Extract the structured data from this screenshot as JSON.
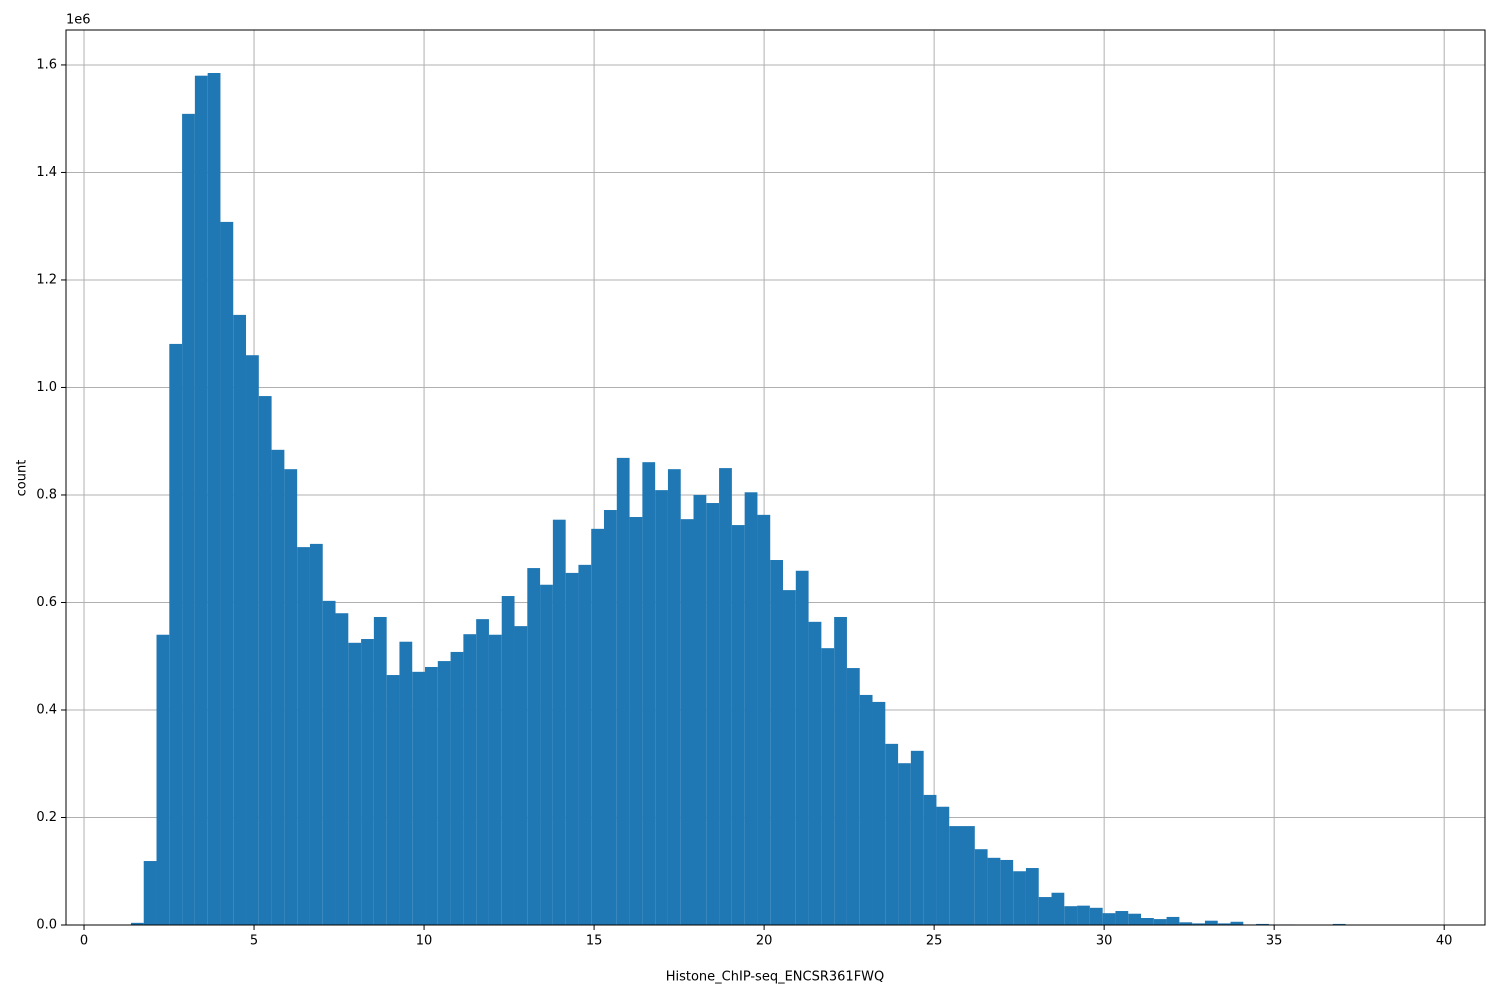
{
  "chart_data": {
    "type": "histogram",
    "color": "#1f77b4",
    "grid": true,
    "x_label": "Histone_ChIP-seq_ENCSR361FWQ",
    "y_label": "count",
    "y_offset_label": "1e6",
    "xlim": [
      -0.53,
      41.2
    ],
    "ylim": [
      0,
      1.665
    ],
    "xticks": [
      0,
      5,
      10,
      15,
      20,
      25,
      30,
      35,
      40
    ],
    "yticks": [
      {
        "value": 0,
        "label": "0.0"
      },
      0.2,
      0.4,
      0.6,
      0.8,
      {
        "value": 1,
        "label": "1.0"
      },
      1.2,
      1.4,
      1.6
    ],
    "bins": [
      1.38,
      1.756,
      2.132,
      2.508,
      2.884,
      3.26,
      3.636,
      4.012,
      4.388,
      4.764,
      5.14,
      5.516,
      5.892,
      6.268,
      6.644,
      7.02,
      7.396,
      7.772,
      8.148,
      8.524,
      8.9,
      9.276,
      9.652,
      10.028,
      10.404,
      10.78,
      11.156,
      11.532,
      11.908,
      12.284,
      12.66,
      13.036,
      13.412,
      13.788,
      14.164,
      14.54,
      14.916,
      15.292,
      15.668,
      16.044,
      16.42,
      16.796,
      17.172,
      17.548,
      17.924,
      18.3,
      18.676,
      19.052,
      19.428,
      19.804,
      20.18,
      20.556,
      20.932,
      21.308,
      21.684,
      22.06,
      22.436,
      22.812,
      23.188,
      23.564,
      23.94,
      24.316,
      24.692,
      25.068,
      25.444,
      25.82,
      26.196,
      26.572,
      26.948,
      27.324,
      27.7,
      28.076,
      28.452,
      28.828,
      29.204,
      29.58,
      29.956,
      30.332,
      30.708,
      31.084,
      31.46,
      31.836,
      32.212,
      32.588,
      32.964,
      33.34,
      33.716,
      34.092,
      34.468,
      34.844,
      35.22,
      35.596,
      35.972,
      36.348,
      36.724,
      37.1,
      37.476,
      37.852,
      38.228,
      38.604,
      38.98
    ],
    "values": [
      0.004,
      0.119,
      0.54,
      1.081,
      1.509,
      1.58,
      1.585,
      1.308,
      1.135,
      1.06,
      0.984,
      0.884,
      0.848,
      0.703,
      0.709,
      0.603,
      0.58,
      0.525,
      0.532,
      0.573,
      0.465,
      0.527,
      0.471,
      0.48,
      0.491,
      0.508,
      0.541,
      0.569,
      0.54,
      0.612,
      0.556,
      0.664,
      0.633,
      0.754,
      0.655,
      0.67,
      0.737,
      0.772,
      0.869,
      0.759,
      0.861,
      0.809,
      0.848,
      0.755,
      0.8,
      0.785,
      0.85,
      0.744,
      0.805,
      0.763,
      0.679,
      0.623,
      0.659,
      0.564,
      0.515,
      0.573,
      0.478,
      0.428,
      0.415,
      0.337,
      0.301,
      0.324,
      0.242,
      0.22,
      0.184,
      0.184,
      0.141,
      0.125,
      0.121,
      0.1,
      0.106,
      0.052,
      0.06,
      0.035,
      0.036,
      0.032,
      0.022,
      0.026,
      0.021,
      0.013,
      0.011,
      0.015,
      0.005,
      0.003,
      0.008,
      0.003,
      0.006,
      0.001,
      0.002,
      0.001,
      0.001,
      0,
      0,
      0,
      0.002,
      0,
      0,
      0,
      0,
      0
    ]
  }
}
